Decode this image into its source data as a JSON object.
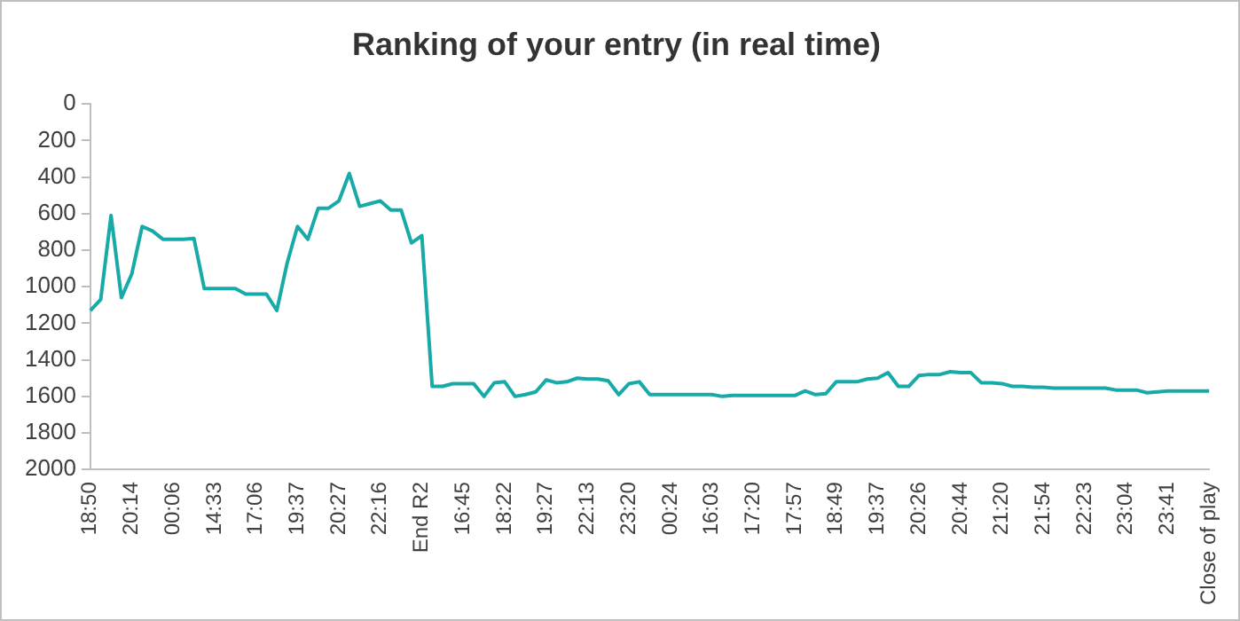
{
  "chart_data": {
    "type": "line",
    "title": "Ranking of your entry (in real time)",
    "categories": [
      "18:50",
      null,
      null,
      null,
      "20:14",
      null,
      null,
      null,
      "00:06",
      null,
      null,
      null,
      "14:33",
      null,
      null,
      null,
      "17:06",
      null,
      null,
      null,
      "19:37",
      null,
      null,
      null,
      "20:27",
      null,
      null,
      null,
      "22:16",
      null,
      null,
      null,
      "End R2",
      null,
      null,
      null,
      "16:45",
      null,
      null,
      null,
      "18:22",
      null,
      null,
      null,
      "19:27",
      null,
      null,
      null,
      "22:13",
      null,
      null,
      null,
      "23:20",
      null,
      null,
      null,
      "00:24",
      null,
      null,
      null,
      "16:03",
      null,
      null,
      null,
      "17:20",
      null,
      null,
      null,
      "17:57",
      null,
      null,
      null,
      "18:49",
      null,
      null,
      null,
      "19:37",
      null,
      null,
      null,
      "20:26",
      null,
      null,
      null,
      "20:44",
      null,
      null,
      null,
      "21:20",
      null,
      null,
      null,
      "21:54",
      null,
      null,
      null,
      "22:23",
      null,
      null,
      null,
      "23:04",
      null,
      null,
      null,
      "23:41",
      null,
      null,
      null,
      "Close of play"
    ],
    "series": [
      {
        "color": "#17aaa8",
        "values": [
          1130,
          1070,
          610,
          1060,
          930,
          670,
          695,
          740,
          740,
          740,
          735,
          1010,
          1010,
          1010,
          1010,
          1040,
          1040,
          1040,
          1130,
          870,
          670,
          740,
          570,
          570,
          530,
          380,
          560,
          545,
          530,
          580,
          580,
          760,
          720,
          1545,
          1545,
          1530,
          1530,
          1530,
          1600,
          1525,
          1520,
          1600,
          1590,
          1575,
          1510,
          1525,
          1520,
          1500,
          1505,
          1505,
          1515,
          1590,
          1530,
          1520,
          1590,
          1590,
          1590,
          1590,
          1590,
          1590,
          1590,
          1600,
          1595,
          1595,
          1595,
          1595,
          1595,
          1595,
          1595,
          1570,
          1590,
          1585,
          1520,
          1520,
          1520,
          1505,
          1500,
          1470,
          1545,
          1545,
          1485,
          1480,
          1480,
          1465,
          1470,
          1470,
          1525,
          1525,
          1530,
          1545,
          1545,
          1550,
          1550,
          1555,
          1555,
          1555,
          1555,
          1555,
          1555,
          1565,
          1565,
          1565,
          1580,
          1575,
          1570,
          1570,
          1570,
          1570,
          1570
        ]
      }
    ],
    "ylim": [
      2000,
      0
    ],
    "yticks": [
      0,
      200,
      400,
      600,
      800,
      1000,
      1200,
      1400,
      1600,
      1800,
      2000
    ],
    "grid": false,
    "legend": false,
    "marker": "none",
    "line_style": "solid"
  }
}
